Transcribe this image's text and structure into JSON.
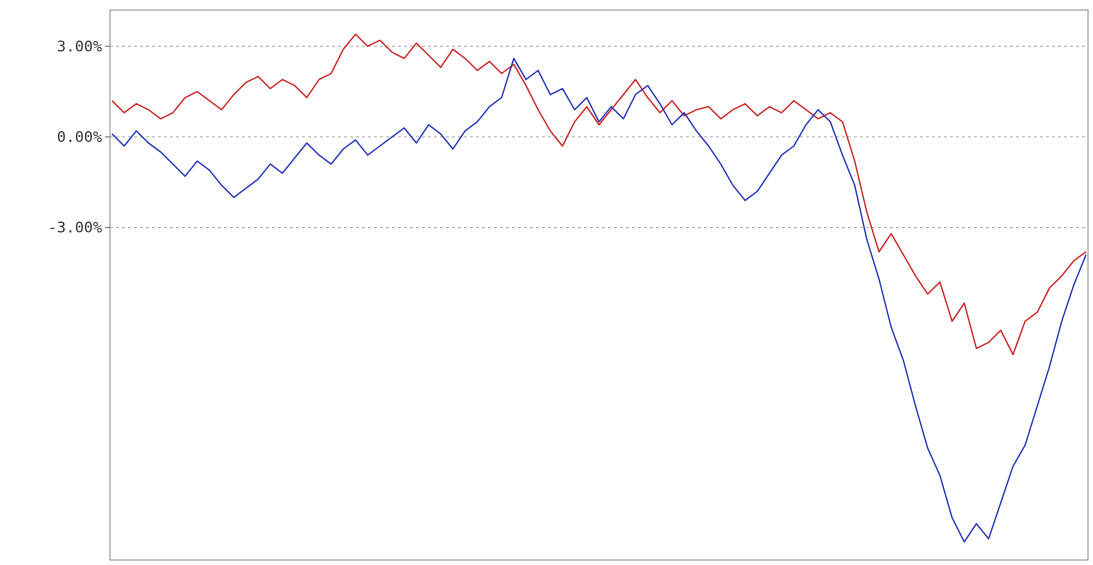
{
  "chart_data": {
    "type": "line",
    "title": "",
    "xlabel": "",
    "ylabel": "",
    "y_tick_labels": [
      "3.00%",
      "0.00%",
      "-3.00%"
    ],
    "y_ticks": [
      3,
      0,
      -3
    ],
    "ylim": [
      -14,
      4.2
    ],
    "grid": "horizontal dashed",
    "legend": "none",
    "x": [
      0,
      1,
      2,
      3,
      4,
      5,
      6,
      7,
      8,
      9,
      10,
      11,
      12,
      13,
      14,
      15,
      16,
      17,
      18,
      19,
      20,
      21,
      22,
      23,
      24,
      25,
      26,
      27,
      28,
      29,
      30,
      31,
      32,
      33,
      34,
      35,
      36,
      37,
      38,
      39,
      40,
      41,
      42,
      43,
      44,
      45,
      46,
      47,
      48,
      49,
      50,
      51,
      52,
      53,
      54,
      55,
      56,
      57,
      58,
      59,
      60,
      61,
      62,
      63,
      64,
      65,
      66,
      67,
      68,
      69,
      70,
      71,
      72,
      73,
      74,
      75,
      76,
      77,
      78,
      79,
      80
    ],
    "series": [
      {
        "color": "#cc2222",
        "values": [
          1.2,
          0.8,
          1.1,
          0.9,
          0.6,
          0.8,
          1.3,
          1.5,
          1.2,
          0.9,
          1.4,
          1.8,
          2.0,
          1.6,
          1.9,
          1.7,
          1.3,
          1.9,
          2.1,
          2.9,
          3.4,
          3.0,
          3.2,
          2.8,
          2.6,
          3.1,
          2.7,
          2.3,
          2.9,
          2.6,
          2.2,
          2.5,
          2.1,
          2.4,
          1.7,
          0.9,
          0.2,
          -0.3,
          0.5,
          1.0,
          0.4,
          0.9,
          1.4,
          1.9,
          1.3,
          0.8,
          1.2,
          0.7,
          0.9,
          1.0,
          0.6,
          0.9,
          1.1,
          0.7,
          1.0,
          0.8,
          1.2,
          0.9,
          0.6,
          0.8,
          0.5,
          -0.8,
          -2.5,
          -3.8,
          -3.2,
          -3.9,
          -4.6,
          -5.2,
          -4.8,
          -6.1,
          -5.5,
          -7.0,
          -6.8,
          -6.4,
          -7.2,
          -6.1,
          -5.8,
          -5.0,
          -4.6,
          -4.1,
          -3.8
        ]
      },
      {
        "color": "#2233bb",
        "values": [
          0.1,
          -0.3,
          0.2,
          -0.2,
          -0.5,
          -0.9,
          -1.3,
          -0.8,
          -1.1,
          -1.6,
          -2.0,
          -1.7,
          -1.4,
          -0.9,
          -1.2,
          -0.7,
          -0.2,
          -0.6,
          -0.9,
          -0.4,
          -0.1,
          -0.6,
          -0.3,
          0.0,
          0.3,
          -0.2,
          0.4,
          0.1,
          -0.4,
          0.2,
          0.5,
          1.0,
          1.3,
          2.6,
          1.9,
          2.2,
          1.4,
          1.6,
          0.9,
          1.3,
          0.5,
          1.0,
          0.6,
          1.4,
          1.7,
          1.1,
          0.4,
          0.8,
          0.2,
          -0.3,
          -0.9,
          -1.6,
          -2.1,
          -1.8,
          -1.2,
          -0.6,
          -0.3,
          0.4,
          0.9,
          0.5,
          -0.6,
          -1.6,
          -3.4,
          -4.7,
          -6.3,
          -7.4,
          -8.9,
          -10.3,
          -11.2,
          -12.6,
          -13.4,
          -12.8,
          -13.3,
          -12.1,
          -10.9,
          -10.2,
          -8.9,
          -7.6,
          -6.1,
          -4.9,
          -3.9
        ]
      }
    ]
  }
}
